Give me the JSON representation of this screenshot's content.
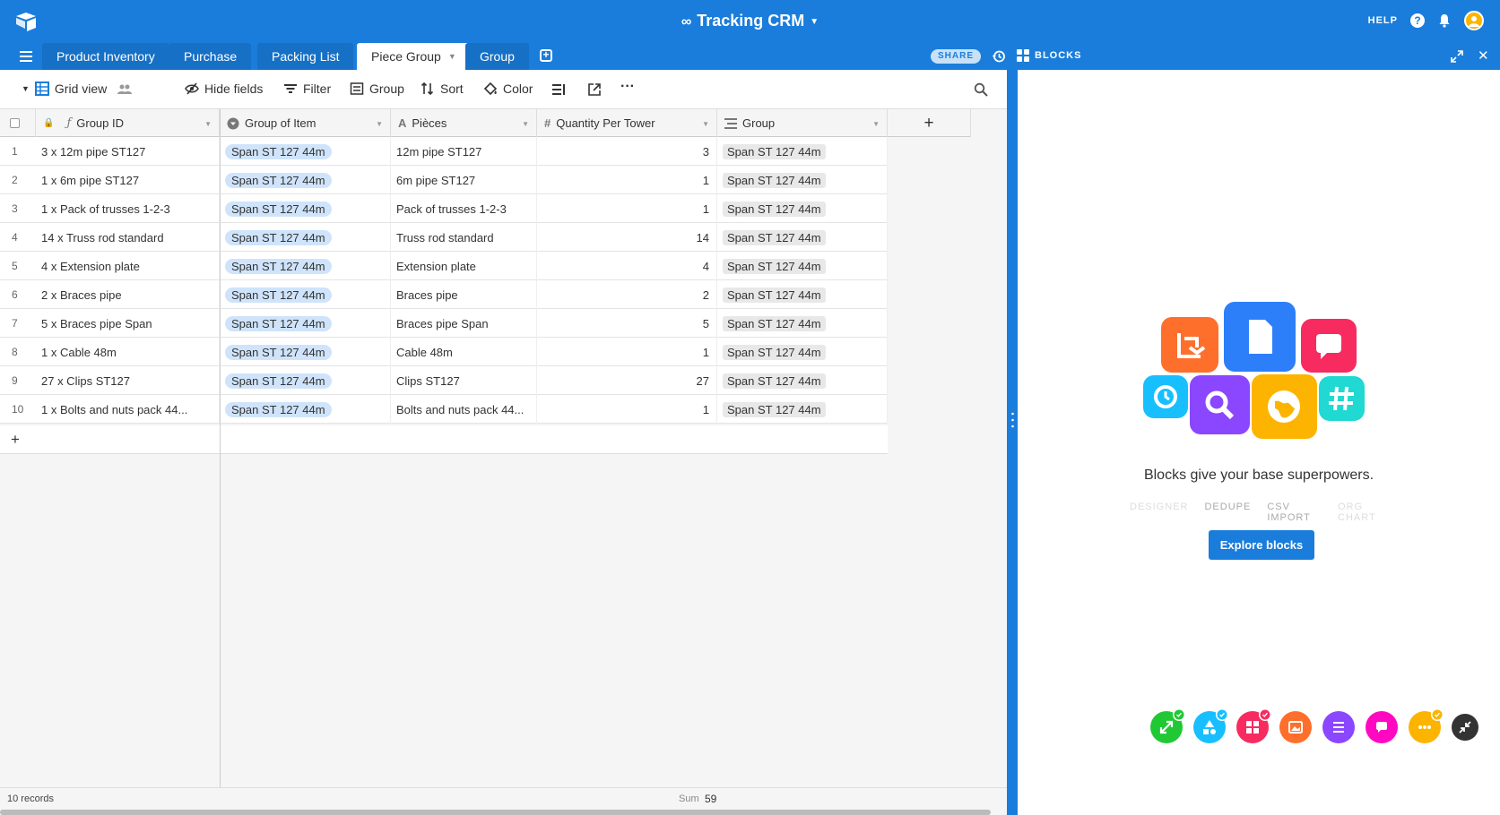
{
  "header": {
    "base_title": "Tracking CRM",
    "help_label": "HELP",
    "accent_color": "#1a7ddb"
  },
  "tabs": [
    {
      "label": "Product Inventory",
      "active": false
    },
    {
      "label": "Purchase",
      "active": false
    },
    {
      "label": "Packing List",
      "active": false
    },
    {
      "label": "Piece Group",
      "active": true
    },
    {
      "label": "Group",
      "active": false
    }
  ],
  "tabbar_right": {
    "share_label": "SHARE",
    "blocks_label": "BLOCKS"
  },
  "toolbar": {
    "view_name": "Grid view",
    "hide_fields": "Hide fields",
    "filter": "Filter",
    "group": "Group",
    "sort": "Sort",
    "color": "Color"
  },
  "table": {
    "columns": [
      {
        "name": "Group ID",
        "type_icon": "formula-icon"
      },
      {
        "name": "Group of Item",
        "type_icon": "link-icon"
      },
      {
        "name": "Pièces",
        "type_icon": "text-icon"
      },
      {
        "name": "Quantity Per Tower",
        "type_icon": "number-icon"
      },
      {
        "name": "Group",
        "type_icon": "lookup-icon"
      }
    ],
    "rows": [
      {
        "n": "1",
        "group_id": "3 x 12m pipe ST127",
        "group_of_item": "Span ST 127 44m",
        "pieces": "12m pipe ST127",
        "qty": "3",
        "group": "Span ST 127 44m"
      },
      {
        "n": "2",
        "group_id": "1 x 6m pipe ST127",
        "group_of_item": "Span ST 127 44m",
        "pieces": "6m pipe ST127",
        "qty": "1",
        "group": "Span ST 127 44m"
      },
      {
        "n": "3",
        "group_id": "1 x Pack of trusses 1-2-3",
        "group_of_item": "Span ST 127 44m",
        "pieces": "Pack of trusses 1-2-3",
        "qty": "1",
        "group": "Span ST 127 44m"
      },
      {
        "n": "4",
        "group_id": "14 x Truss rod standard",
        "group_of_item": "Span ST 127 44m",
        "pieces": "Truss rod standard",
        "qty": "14",
        "group": "Span ST 127 44m"
      },
      {
        "n": "5",
        "group_id": "4 x Extension plate",
        "group_of_item": "Span ST 127 44m",
        "pieces": "Extension plate",
        "qty": "4",
        "group": "Span ST 127 44m"
      },
      {
        "n": "6",
        "group_id": "2 x Braces pipe",
        "group_of_item": "Span ST 127 44m",
        "pieces": "Braces pipe",
        "qty": "2",
        "group": "Span ST 127 44m"
      },
      {
        "n": "7",
        "group_id": "5 x Braces pipe Span",
        "group_of_item": "Span ST 127 44m",
        "pieces": "Braces pipe Span",
        "qty": "5",
        "group": "Span ST 127 44m"
      },
      {
        "n": "8",
        "group_id": "1 x Cable 48m",
        "group_of_item": "Span ST 127 44m",
        "pieces": "Cable 48m",
        "qty": "1",
        "group": "Span ST 127 44m"
      },
      {
        "n": "9",
        "group_id": "27 x Clips ST127",
        "group_of_item": "Span ST 127 44m",
        "pieces": "Clips ST127",
        "qty": "27",
        "group": "Span ST 127 44m"
      },
      {
        "n": "10",
        "group_id": "1 x Bolts and nuts pack 44...",
        "group_of_item": "Span ST 127 44m",
        "pieces": "Bolts and nuts pack 44...",
        "qty": "1",
        "group": "Span ST 127 44m"
      }
    ],
    "add_row_symbol": "+",
    "add_column_symbol": "+"
  },
  "footer": {
    "records": "10 records",
    "sum_label": "Sum",
    "sum_value": "59"
  },
  "blocks_panel": {
    "headline": "Blocks give your base superpowers.",
    "carousel": [
      "DESIGNER",
      "DEDUPE",
      "CSV IMPORT",
      "ORG CHART"
    ],
    "explore_button": "Explore blocks",
    "dock_colors": [
      "#20c933",
      "#18bfff",
      "#f82b60",
      "#ff6f2c",
      "#8b46ff",
      "#ff08c2",
      "#fcb400",
      "#333333"
    ]
  }
}
